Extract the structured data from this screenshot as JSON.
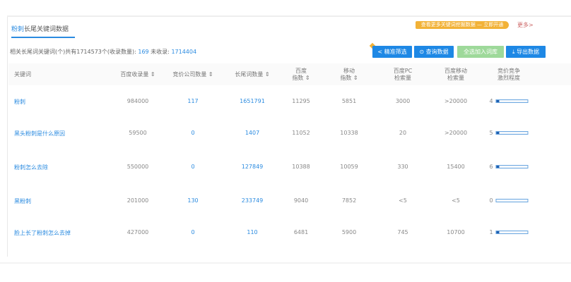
{
  "title": {
    "highlight": "粉刺",
    "rest": "长尾关键词数据"
  },
  "banner": "查看更多关键词挖掘数据 — 立即开通",
  "more": "更多>",
  "summary": {
    "prefix": "相关长尾词关键词(个)共有1714573个(收录数量):",
    "included": "169",
    "mid": " 未收录:",
    "excluded": "1714404"
  },
  "buttons": {
    "filter": "< 精准筛选",
    "query": "⊙ 查询数据",
    "add": "全选加入词库",
    "export": "⤓ 导出数据"
  },
  "headers": [
    "关键词",
    "百度收录量 ⇕",
    "竞价公司数量 ⇕",
    "长尾词数量 ⇕",
    "百度\n指数 ⇕",
    "移动\n指数 ⇕",
    "百度PC\n检索量",
    "百度移动\n检索量",
    "竞价竞争\n激烈程度"
  ],
  "rows": [
    {
      "keyword": "粉刺",
      "included": "984000",
      "bid": "117",
      "longtail": "1651791",
      "index": "11295",
      "mobile": "5851",
      "pc": "3000",
      "mob_search": ">20000",
      "compete": "4",
      "level": 0.04
    },
    {
      "keyword": "黑头粉刺是什么原因",
      "included": "59500",
      "bid": "0",
      "longtail": "1407",
      "index": "11052",
      "mobile": "10338",
      "pc": "20",
      "mob_search": ">20000",
      "compete": "5",
      "level": 0.05
    },
    {
      "keyword": "粉刺怎么去除",
      "included": "550000",
      "bid": "0",
      "longtail": "127849",
      "index": "10388",
      "mobile": "10059",
      "pc": "330",
      "mob_search": "15400",
      "compete": "6",
      "level": 0.06
    },
    {
      "keyword": "黑粉刺",
      "included": "201000",
      "bid": "130",
      "longtail": "233749",
      "index": "9040",
      "mobile": "7852",
      "pc": "<5",
      "mob_search": "<5",
      "compete": "0",
      "level": 0
    },
    {
      "keyword": "脸上长了粉刺怎么去掉",
      "included": "427000",
      "bid": "0",
      "longtail": "110",
      "index": "6481",
      "mobile": "5900",
      "pc": "745",
      "mob_search": "10700",
      "compete": "1",
      "level": 0.01
    }
  ]
}
